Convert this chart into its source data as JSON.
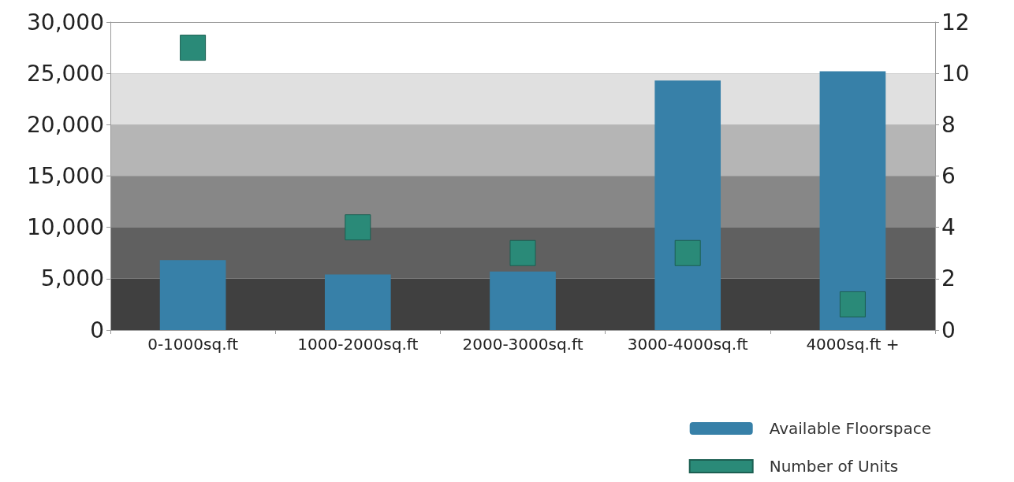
{
  "chart_data": {
    "type": "bar",
    "categories": [
      "0-1000sq.ft",
      "1000-2000sq.ft",
      "2000-3000sq.ft",
      "3000-4000sq.ft",
      "4000sq.ft +"
    ],
    "series": [
      {
        "name": "Available Floorspace",
        "color": "#3780a8",
        "values": [
          6800,
          5400,
          5700,
          24300,
          25200
        ]
      },
      {
        "name": "Number of Units",
        "type": "scatter",
        "axis": "y2",
        "color": "#2a8a78",
        "values": [
          11,
          4,
          3,
          3,
          1
        ]
      }
    ],
    "ylim": [
      0,
      30000
    ],
    "yticks": [
      {
        "value": 0,
        "label": "0"
      },
      {
        "value": 5000,
        "label": "5,000"
      },
      {
        "value": 10000,
        "label": "10,000"
      },
      {
        "value": 15000,
        "label": "15,000"
      },
      {
        "value": 20000,
        "label": "20,000"
      },
      {
        "value": 25000,
        "label": "25,000"
      },
      {
        "value": 30000,
        "label": "30,000"
      }
    ],
    "y2lim": [
      0,
      12
    ],
    "y2ticks": [
      0,
      2,
      4,
      6,
      8,
      10,
      12
    ],
    "bands": [
      {
        "axis": "y",
        "from": 0,
        "to": 5000,
        "color": "#404040"
      },
      {
        "axis": "y",
        "from": 5000,
        "to": 10000,
        "color": "#606060"
      },
      {
        "axis": "y",
        "from": 10000,
        "to": 15000,
        "color": "#878787"
      },
      {
        "axis": "y",
        "from": 15000,
        "to": 20000,
        "color": "#b5b5b5"
      },
      {
        "axis": "y",
        "from": 20000,
        "to": 25000,
        "color": "#e0e0e0"
      }
    ],
    "marker": "square",
    "grid": "y",
    "legend": "bottom right"
  }
}
